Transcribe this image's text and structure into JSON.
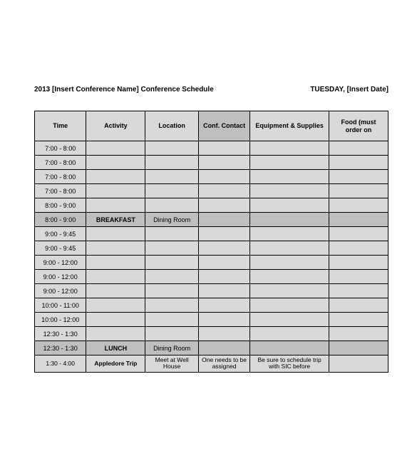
{
  "header": {
    "title_left": "2013 [Insert Conference Name] Conference Schedule",
    "title_right": "TUESDAY, [Insert Date]"
  },
  "table": {
    "colors": {
      "header_bg": "#d9d9d9",
      "header_dark_bg": "#bfbfbf",
      "row_bg": "#d9d9d9",
      "meal_bg": "#bfbfbf",
      "border": "#000000",
      "page_bg": "#ffffff",
      "text": "#000000"
    },
    "columns": [
      "Time",
      "Activity",
      "Location",
      "Conf. Contact",
      "Equipment & Supplies",
      "Food (must order on"
    ],
    "col_header_shade": [
      "light",
      "light",
      "light",
      "dark",
      "light",
      "light"
    ],
    "rows": [
      {
        "shade": "light",
        "time": "7:00 - 8:00",
        "activity": "",
        "location": "",
        "contact": "",
        "equip": "",
        "food": ""
      },
      {
        "shade": "light",
        "time": "7:00 - 8:00",
        "activity": "",
        "location": "",
        "contact": "",
        "equip": "",
        "food": ""
      },
      {
        "shade": "light",
        "time": "7:00 - 8:00",
        "activity": "",
        "location": "",
        "contact": "",
        "equip": "",
        "food": ""
      },
      {
        "shade": "light",
        "time": "7:00 - 8:00",
        "activity": "",
        "location": "",
        "contact": "",
        "equip": "",
        "food": ""
      },
      {
        "shade": "light",
        "time": "8:00 - 9:00",
        "activity": "",
        "location": "",
        "contact": "",
        "equip": "",
        "food": ""
      },
      {
        "shade": "meal",
        "time": "8:00 - 9:00",
        "activity": "BREAKFAST",
        "activity_bold": true,
        "location": "Dining Room",
        "contact": "",
        "equip": "",
        "food": ""
      },
      {
        "shade": "light",
        "time": "9:00 - 9:45",
        "activity": "",
        "location": "",
        "contact": "",
        "equip": "",
        "food": ""
      },
      {
        "shade": "light",
        "time": "9:00 - 9:45",
        "activity": "",
        "location": "",
        "contact": "",
        "equip": "",
        "food": ""
      },
      {
        "shade": "light",
        "time": "9:00 - 12:00",
        "activity": "",
        "location": "",
        "contact": "",
        "equip": "",
        "food": ""
      },
      {
        "shade": "light",
        "time": "9:00 - 12:00",
        "activity": "",
        "location": "",
        "contact": "",
        "equip": "",
        "food": ""
      },
      {
        "shade": "light",
        "time": "9:00 - 12:00",
        "activity": "",
        "location": "",
        "contact": "",
        "equip": "",
        "food": ""
      },
      {
        "shade": "light",
        "time": "10:00 - 11:00",
        "activity": "",
        "location": "",
        "contact": "",
        "equip": "",
        "food": ""
      },
      {
        "shade": "light",
        "time": "10:00 - 12:00",
        "activity": "",
        "location": "",
        "contact": "",
        "equip": "",
        "food": ""
      },
      {
        "shade": "light",
        "time": "12:30 - 1:30",
        "activity": "",
        "location": "",
        "contact": "",
        "equip": "",
        "food": ""
      },
      {
        "shade": "meal",
        "time": "12:30 - 1:30",
        "activity": "LUNCH",
        "activity_bold": true,
        "location": "Dining Room",
        "contact": "",
        "equip": "",
        "food": ""
      },
      {
        "shade": "light",
        "time": "1:30 - 4:00",
        "activity": "Appledore Trip",
        "activity_bold": true,
        "location": "Meet at Well House",
        "contact": "One needs to be assigned",
        "equip": "Be sure to schedule trip with SIC before",
        "food": "",
        "multiline": true
      }
    ]
  }
}
